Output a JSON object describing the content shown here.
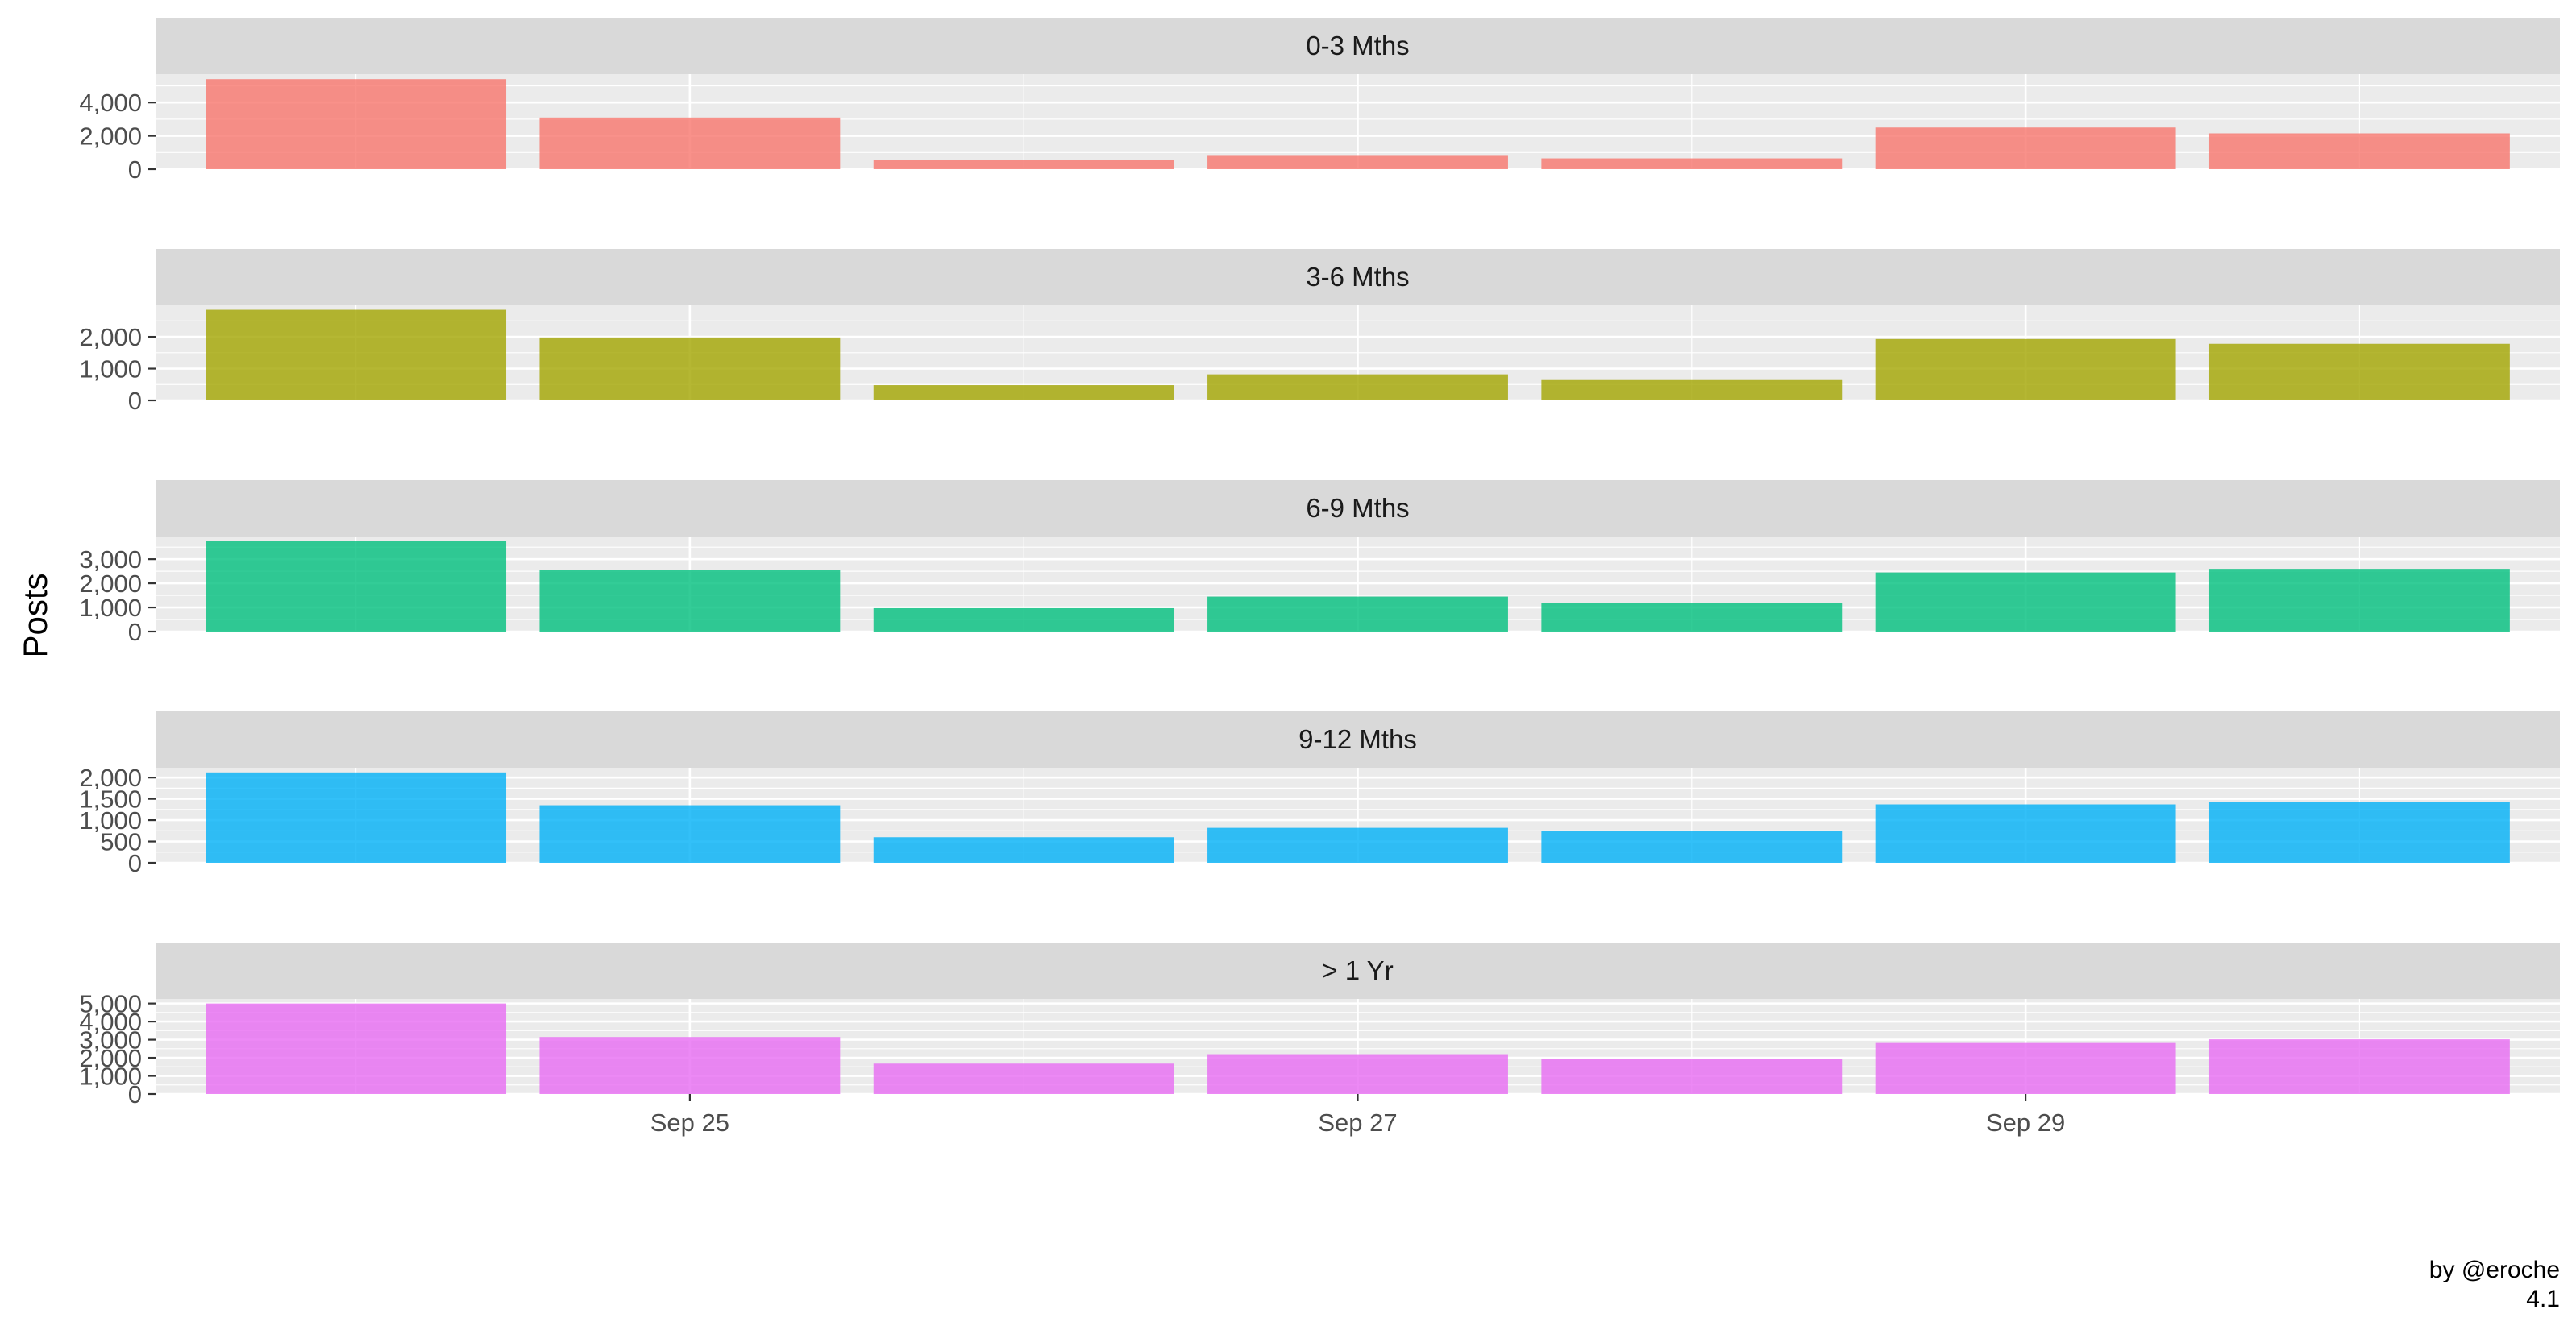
{
  "chart_data": {
    "type": "bar",
    "layout": "facet-rows",
    "x": [
      "Sep 24",
      "Sep 25",
      "Sep 26",
      "Sep 27",
      "Sep 28",
      "Sep 29",
      "Sep 30"
    ],
    "x_ticks": [
      "Sep 25",
      "Sep 27",
      "Sep 29"
    ],
    "xlabel": "",
    "ylabel": "Posts",
    "grid": true,
    "legend": "none",
    "caption": [
      "by @eroche",
      "4.1"
    ],
    "colors": {
      "panel_background": "#EBEBEB",
      "strip_background": "#D9D9D9",
      "grid": "#FFFFFF"
    },
    "panels": [
      {
        "name": "0-3 Mths",
        "color": "#F8766D",
        "values": [
          5400,
          3100,
          550,
          800,
          650,
          2500,
          2150
        ],
        "ylim": [
          0,
          5700
        ],
        "yticks": [
          0,
          2000,
          4000
        ],
        "ytick_labels": [
          "0",
          "2,000",
          "4,000"
        ]
      },
      {
        "name": "3-6 Mths",
        "color": "#A3A500",
        "values": [
          2850,
          1980,
          480,
          820,
          640,
          1930,
          1780
        ],
        "ylim": [
          0,
          2990
        ],
        "yticks": [
          0,
          1000,
          2000
        ],
        "ytick_labels": [
          "0",
          "1,000",
          "2,000"
        ]
      },
      {
        "name": "6-9 Mths",
        "color": "#00BF7D",
        "values": [
          3750,
          2550,
          970,
          1450,
          1200,
          2450,
          2600
        ],
        "ylim": [
          0,
          3940
        ],
        "yticks": [
          0,
          1000,
          2000,
          3000
        ],
        "ytick_labels": [
          "0",
          "1,000",
          "2,000",
          "3,000"
        ]
      },
      {
        "name": "9-12 Mths",
        "color": "#00B0F6",
        "values": [
          2120,
          1350,
          600,
          820,
          740,
          1370,
          1420
        ],
        "ylim": [
          0,
          2230
        ],
        "yticks": [
          0,
          500,
          1000,
          1500,
          2000
        ],
        "ytick_labels": [
          "0",
          "500",
          "1,000",
          "1,500",
          "2,000"
        ]
      },
      {
        "name": "> 1 Yr",
        "color": "#E76BF3",
        "values": [
          5000,
          3150,
          1680,
          2200,
          1950,
          2820,
          3020
        ],
        "ylim": [
          0,
          5250
        ],
        "yticks": [
          0,
          1000,
          2000,
          3000,
          4000,
          5000
        ],
        "ytick_labels": [
          "0",
          "1,000",
          "2,000",
          "3,000",
          "4,000",
          "5,000"
        ]
      }
    ]
  }
}
